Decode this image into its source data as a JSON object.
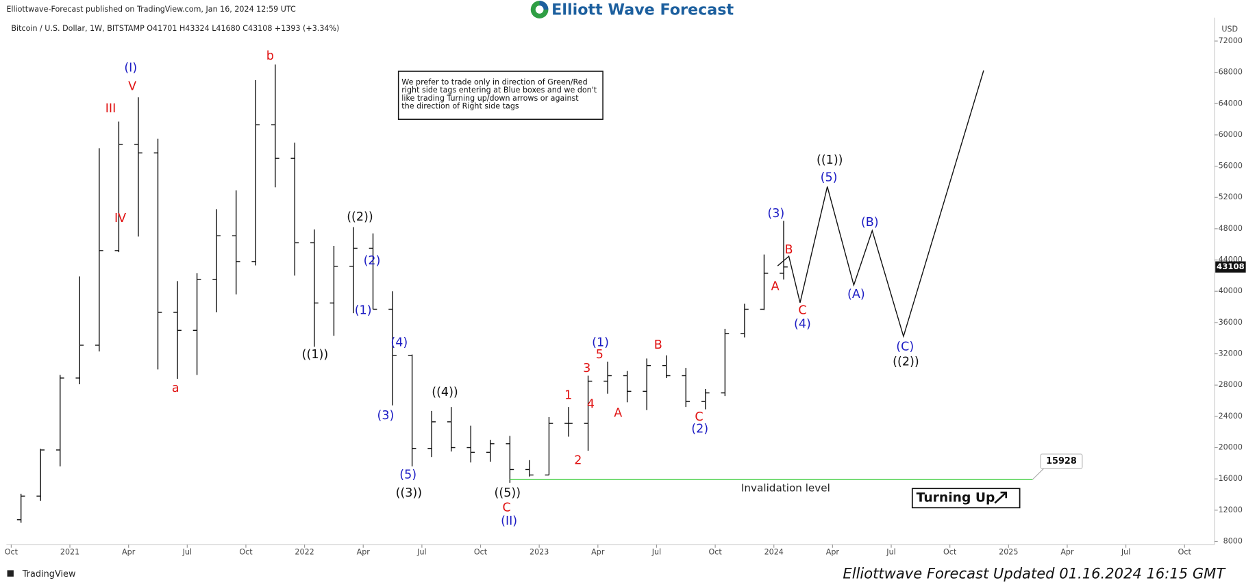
{
  "chart_data": {
    "type": "ohlc",
    "publisher": "Elliottwave-Forecast published on TradingView.com, Jan 16, 2024 12:59 UTC",
    "brand": "Elliott Wave Forecast",
    "symbol_line": "Bitcoin / U.S. Dollar, 1W, BITSTAMP  O41701  H43324  L41680  C43108  +1393 (+3.34%)",
    "currency": "USD",
    "x": [
      "2020-10",
      "2020-11",
      "2020-12",
      "2021-01",
      "2021-02",
      "2021-03",
      "2021-04",
      "2021-05",
      "2021-06",
      "2021-07",
      "2021-08",
      "2021-09",
      "2021-10",
      "2021-11",
      "2021-12",
      "2022-01",
      "2022-02",
      "2022-03",
      "2022-04",
      "2022-05",
      "2022-06",
      "2022-07",
      "2022-08",
      "2022-09",
      "2022-10",
      "2022-11",
      "2022-12",
      "2023-01",
      "2023-02",
      "2023-03",
      "2023-04",
      "2023-05",
      "2023-06",
      "2023-07",
      "2023-08",
      "2023-09",
      "2023-10",
      "2023-11",
      "2023-12",
      "2024-01"
    ],
    "open": [
      10780,
      13800,
      19700,
      28900,
      33100,
      45200,
      58800,
      57700,
      37300,
      35000,
      41500,
      47100,
      43800,
      61300,
      57000,
      46200,
      38500,
      43200,
      45500,
      37700,
      31800,
      19900,
      23300,
      20000,
      19400,
      20500,
      17200,
      16500,
      23100,
      23100,
      28500,
      29200,
      27200,
      30500,
      29200,
      25900,
      27000,
      34600,
      37700,
      42300
    ],
    "high": [
      14100,
      19850,
      29300,
      41900,
      58300,
      61700,
      64800,
      59500,
      41300,
      42300,
      50500,
      52900,
      67000,
      69000,
      59000,
      47900,
      45800,
      48200,
      47400,
      40000,
      31900,
      24700,
      25200,
      22800,
      21000,
      21500,
      18400,
      23900,
      25200,
      29200,
      31000,
      29800,
      31400,
      31800,
      30200,
      27500,
      35200,
      38400,
      44700,
      49000
    ],
    "low": [
      10400,
      13200,
      17600,
      28100,
      32300,
      45000,
      47000,
      30000,
      28800,
      29300,
      37300,
      39600,
      43300,
      53300,
      42000,
      32900,
      34300,
      37200,
      37700,
      25400,
      17600,
      18800,
      19500,
      18100,
      18200,
      15500,
      16300,
      16500,
      21400,
      19600,
      26900,
      25800,
      24800,
      28900,
      25200,
      24900,
      26600,
      34100,
      37600,
      41500
    ],
    "close": [
      13800,
      19700,
      28900,
      33100,
      45200,
      58800,
      57700,
      37300,
      35000,
      41500,
      47100,
      43800,
      61300,
      57000,
      46200,
      38500,
      43200,
      45500,
      37700,
      31800,
      19900,
      23300,
      20000,
      19400,
      20500,
      17200,
      16500,
      23100,
      23100,
      28500,
      29200,
      27200,
      30500,
      29200,
      25900,
      27000,
      34600,
      37700,
      42300,
      43108
    ],
    "xlim": [
      "2020-10",
      "2025-11"
    ],
    "xticks": [
      {
        "value": "2020-10",
        "label": "Oct"
      },
      {
        "value": "2021-01",
        "label": "2021"
      },
      {
        "value": "2021-04",
        "label": "Apr"
      },
      {
        "value": "2021-07",
        "label": "Jul"
      },
      {
        "value": "2021-10",
        "label": "Oct"
      },
      {
        "value": "2022-01",
        "label": "2022"
      },
      {
        "value": "2022-04",
        "label": "Apr"
      },
      {
        "value": "2022-07",
        "label": "Jul"
      },
      {
        "value": "2022-10",
        "label": "Oct"
      },
      {
        "value": "2023-01",
        "label": "2023"
      },
      {
        "value": "2023-04",
        "label": "Apr"
      },
      {
        "value": "2023-07",
        "label": "Jul"
      },
      {
        "value": "2023-10",
        "label": "Oct"
      },
      {
        "value": "2024-01",
        "label": "2024"
      },
      {
        "value": "2024-04",
        "label": "Apr"
      },
      {
        "value": "2024-07",
        "label": "Jul"
      },
      {
        "value": "2024-10",
        "label": "Oct"
      },
      {
        "value": "2025-01",
        "label": "2025"
      },
      {
        "value": "2025-04",
        "label": "Apr"
      },
      {
        "value": "2025-07",
        "label": "Jul"
      },
      {
        "value": "2025-10",
        "label": "Oct"
      }
    ],
    "ylim": [
      7600,
      75000
    ],
    "yticks": [
      8000,
      12000,
      16000,
      20000,
      24000,
      28000,
      32000,
      36000,
      40000,
      44000,
      48000,
      52000,
      56000,
      60000,
      64000,
      68000,
      72000
    ],
    "last_price": 43108,
    "invalidation": {
      "value": 15928,
      "label": "Invalidation level",
      "color": "#4cd14c"
    },
    "note": [
      "We prefer to trade only in direction of Green/Red",
      "right side tags entering at Blue boxes and we don't",
      "like trading Turning up/down arrows or against",
      "the direction of Right side tags"
    ],
    "signal": "Turning Up",
    "annotations": [
      {
        "text": "(I)",
        "color": "#1d1dc4"
      },
      {
        "text": "V",
        "color": "#e01010"
      },
      {
        "text": "III",
        "color": "#e01010"
      },
      {
        "text": "IV",
        "color": "#e01010"
      },
      {
        "text": "a",
        "color": "#e01010"
      },
      {
        "text": "b",
        "color": "#e01010"
      },
      {
        "text": "((2))",
        "color": "#111111"
      },
      {
        "text": "(2)",
        "color": "#1d1dc4"
      },
      {
        "text": "(1)",
        "color": "#1d1dc4"
      },
      {
        "text": "((1))",
        "color": "#111111"
      },
      {
        "text": "(4)",
        "color": "#1d1dc4"
      },
      {
        "text": "(3)",
        "color": "#1d1dc4"
      },
      {
        "text": "((4))",
        "color": "#111111"
      },
      {
        "text": "(5)",
        "color": "#1d1dc4"
      },
      {
        "text": "((3))",
        "color": "#111111"
      },
      {
        "text": "((5))",
        "color": "#111111"
      },
      {
        "text": "C",
        "color": "#e01010"
      },
      {
        "text": "(II)",
        "color": "#1d1dc4"
      },
      {
        "text": "1",
        "color": "#e01010"
      },
      {
        "text": "2",
        "color": "#e01010"
      },
      {
        "text": "3",
        "color": "#e01010"
      },
      {
        "text": "4",
        "color": "#e01010"
      },
      {
        "text": "5",
        "color": "#e01010"
      },
      {
        "text": "(1)",
        "color": "#1d1dc4"
      },
      {
        "text": "A",
        "color": "#e01010"
      },
      {
        "text": "B",
        "color": "#e01010"
      },
      {
        "text": "C",
        "color": "#e01010"
      },
      {
        "text": "(2)",
        "color": "#1d1dc4"
      },
      {
        "text": "(3)",
        "color": "#1d1dc4"
      },
      {
        "text": "B",
        "color": "#e01010"
      },
      {
        "text": "A",
        "color": "#e01010"
      },
      {
        "text": "C",
        "color": "#e01010"
      },
      {
        "text": "(4)",
        "color": "#1d1dc4"
      },
      {
        "text": "((1))",
        "color": "#111111"
      },
      {
        "text": "(5)",
        "color": "#1d1dc4"
      },
      {
        "text": "(B)",
        "color": "#1d1dc4"
      },
      {
        "text": "(A)",
        "color": "#1d1dc4"
      },
      {
        "text": "(C)",
        "color": "#1d1dc4"
      },
      {
        "text": "((2))",
        "color": "#111111"
      }
    ],
    "footer": "Elliottwave Forecast Updated 01.16.2024 16:15 GMT",
    "platform": "TradingView"
  }
}
